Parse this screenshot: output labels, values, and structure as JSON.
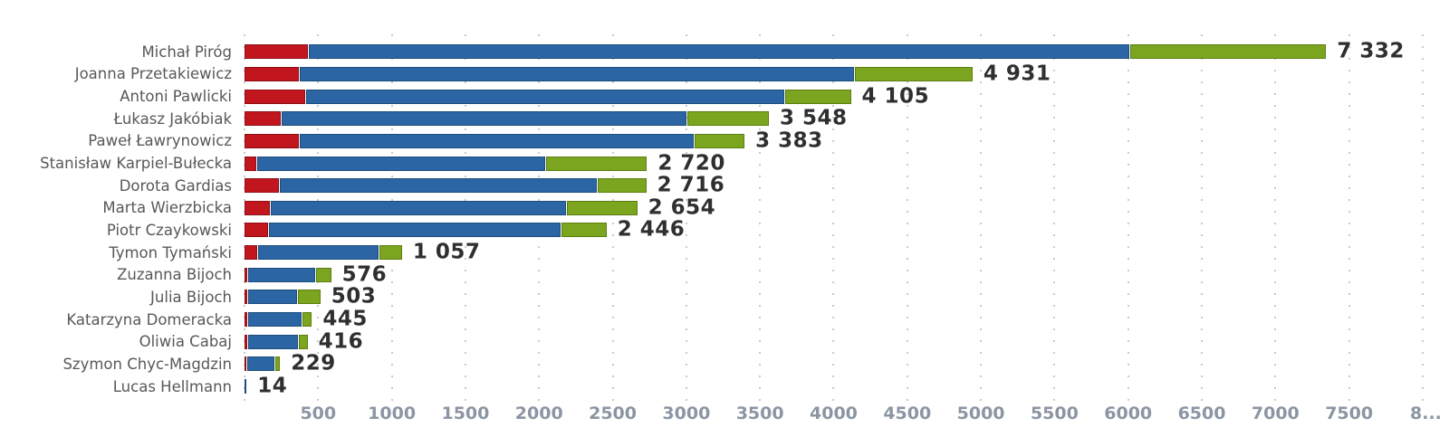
{
  "chart_data": {
    "type": "bar",
    "orientation": "horizontal",
    "stacked": true,
    "title": "",
    "xlabel": "",
    "ylabel": "",
    "grid": "vertical-dotted",
    "legend_position": "none",
    "xlim": [
      0,
      8180
    ],
    "categories": [
      "Michał Piróg",
      "Joanna Przetakiewicz",
      "Antoni Pawlicki",
      "Łukasz Jakóbiak",
      "Paweł Ławrynowicz",
      "Stanisław Karpiel-Bułecka",
      "Dorota Gardias",
      "Marta Wierzbicka",
      "Piotr Czaykowski",
      "Tymon Tymański",
      "Zuzanna Bijoch",
      "Julia Bijoch",
      "Katarzyna Domeracka",
      "Oliwia Cabaj",
      "Szymon Chyc-Magdzin",
      "Lucas Hellmann"
    ],
    "series": [
      {
        "name": "red-segment",
        "color": "#c2161f",
        "values": [
          430,
          370,
          415,
          245,
          366,
          80,
          234,
          172,
          160,
          85,
          21,
          21,
          21,
          21,
          13,
          0
        ]
      },
      {
        "name": "blue-segment",
        "color": "#2b65a3",
        "values": [
          5570,
          3760,
          3245,
          2752,
          2680,
          1957,
          2154,
          2006,
          1982,
          820,
          453,
          329,
          360,
          336,
          184,
          14
        ]
      },
      {
        "name": "green-segment",
        "color": "#7ba51f",
        "values": [
          1332,
          801,
          445,
          551,
          337,
          683,
          328,
          476,
          304,
          152,
          102,
          153,
          64,
          59,
          32,
          0
        ]
      }
    ],
    "totals": [
      7332,
      4931,
      4105,
      3548,
      3383,
      2720,
      2716,
      2654,
      2446,
      1057,
      576,
      503,
      445,
      416,
      229,
      14
    ],
    "total_labels": [
      "7 332",
      "4 931",
      "4 105",
      "3 548",
      "3 383",
      "2 720",
      "2 716",
      "2 654",
      "2 446",
      "1 057",
      "576",
      "503",
      "445",
      "416",
      "229",
      "14"
    ],
    "x_axis": {
      "tick_values": [
        0,
        500,
        1000,
        1500,
        2000,
        2500,
        3000,
        3500,
        4000,
        4500,
        5000,
        5500,
        6000,
        6500,
        7000,
        7500,
        8000
      ],
      "tick_labels": [
        "",
        "500",
        "1000",
        "1500",
        "2000",
        "2500",
        "3000",
        "3500",
        "4000",
        "4500",
        "5000",
        "5500",
        "6000",
        "6500",
        "7000",
        "7500",
        "8..."
      ]
    }
  },
  "colors": {
    "red_fill": "#c2161f",
    "red_border": "#8e1016",
    "blue_fill": "#2b65a3",
    "blue_border": "#1e4d7e",
    "green_fill": "#7ba51f",
    "green_border": "#5d7e11",
    "value_text": "#2e2f31",
    "name_text": "#57585b",
    "axis_text": "#8c95a3",
    "gridline": "#c9cacc"
  }
}
